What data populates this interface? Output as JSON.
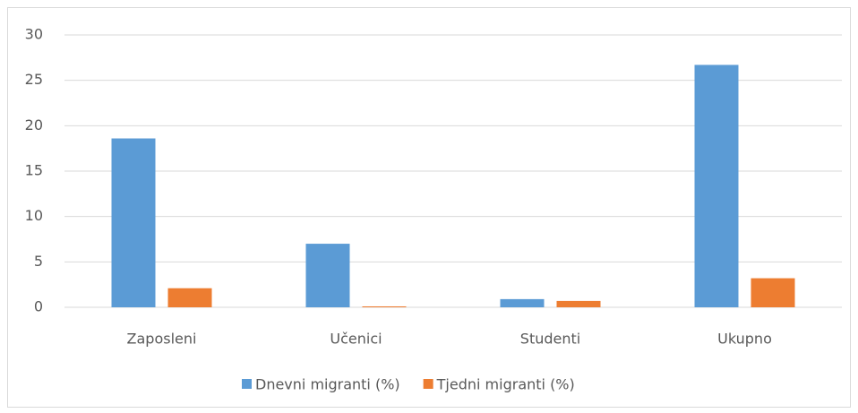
{
  "chart_data": {
    "type": "bar",
    "categories": [
      "Zaposleni",
      "Učenici",
      "Studenti",
      "Ukupno"
    ],
    "series": [
      {
        "name": "Dnevni migranti (%)",
        "color": "#5b9bd5",
        "values": [
          18.6,
          7.0,
          0.9,
          26.7
        ]
      },
      {
        "name": "Tjedni migranti (%)",
        "color": "#ed7d31",
        "values": [
          2.1,
          0.1,
          0.7,
          3.2
        ]
      }
    ],
    "ylim": [
      0,
      30
    ],
    "yticks": [
      0,
      5,
      10,
      15,
      20,
      25,
      30
    ],
    "grid": true,
    "legend": "bottom"
  }
}
